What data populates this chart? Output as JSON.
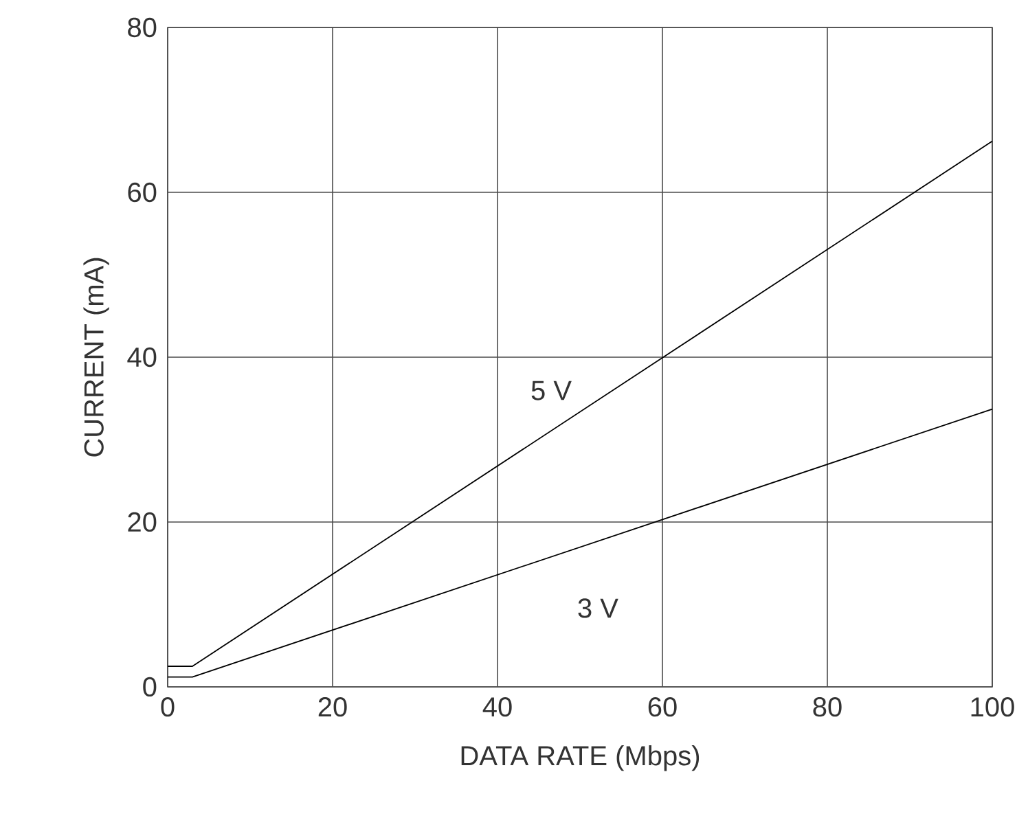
{
  "chart_data": {
    "type": "line",
    "xlabel": "DATA RATE (Mbps)",
    "ylabel": "CURRENT (mA)",
    "xlim": [
      0,
      100
    ],
    "ylim": [
      0,
      80
    ],
    "xticks": [
      0,
      20,
      40,
      60,
      80,
      100
    ],
    "yticks": [
      0,
      20,
      40,
      60,
      80
    ],
    "grid": true,
    "legend": false,
    "marker": "none",
    "line_style": "solid",
    "series": [
      {
        "name": "5 V",
        "color": "#000000",
        "x": [
          0,
          3,
          100
        ],
        "values": [
          2.5,
          2.5,
          66.2
        ]
      },
      {
        "name": "3 V",
        "color": "#000000",
        "x": [
          0,
          3,
          100
        ],
        "values": [
          1.2,
          1.2,
          33.7
        ]
      }
    ]
  }
}
